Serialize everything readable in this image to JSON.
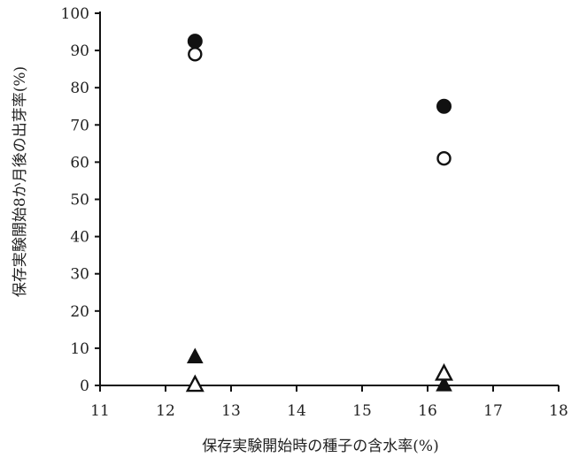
{
  "chart_data": {
    "type": "scatter",
    "title": "",
    "xlabel": "保存実験開始時の種子の含水率(%)",
    "ylabel": "保存実験開始8か月後の出芽率(%)",
    "xlim": [
      11,
      18
    ],
    "ylim": [
      0,
      100
    ],
    "x_ticks": [
      11,
      12,
      13,
      14,
      15,
      16,
      17,
      18
    ],
    "y_ticks": [
      0,
      10,
      20,
      30,
      40,
      50,
      60,
      70,
      80,
      90,
      100
    ],
    "grid": false,
    "legend": "none",
    "series": [
      {
        "marker": "filled-circle",
        "color": "#111111",
        "points": [
          {
            "x": 12.45,
            "y": 92.5
          },
          {
            "x": 16.25,
            "y": 75
          }
        ]
      },
      {
        "marker": "open-circle",
        "color": "#111111",
        "points": [
          {
            "x": 12.45,
            "y": 89
          },
          {
            "x": 16.25,
            "y": 61
          }
        ]
      },
      {
        "marker": "filled-triangle",
        "color": "#111111",
        "points": [
          {
            "x": 12.45,
            "y": 7.5
          },
          {
            "x": 16.25,
            "y": 0
          }
        ]
      },
      {
        "marker": "open-triangle",
        "color": "#111111",
        "points": [
          {
            "x": 12.45,
            "y": 0
          },
          {
            "x": 16.25,
            "y": 3
          }
        ]
      }
    ]
  }
}
